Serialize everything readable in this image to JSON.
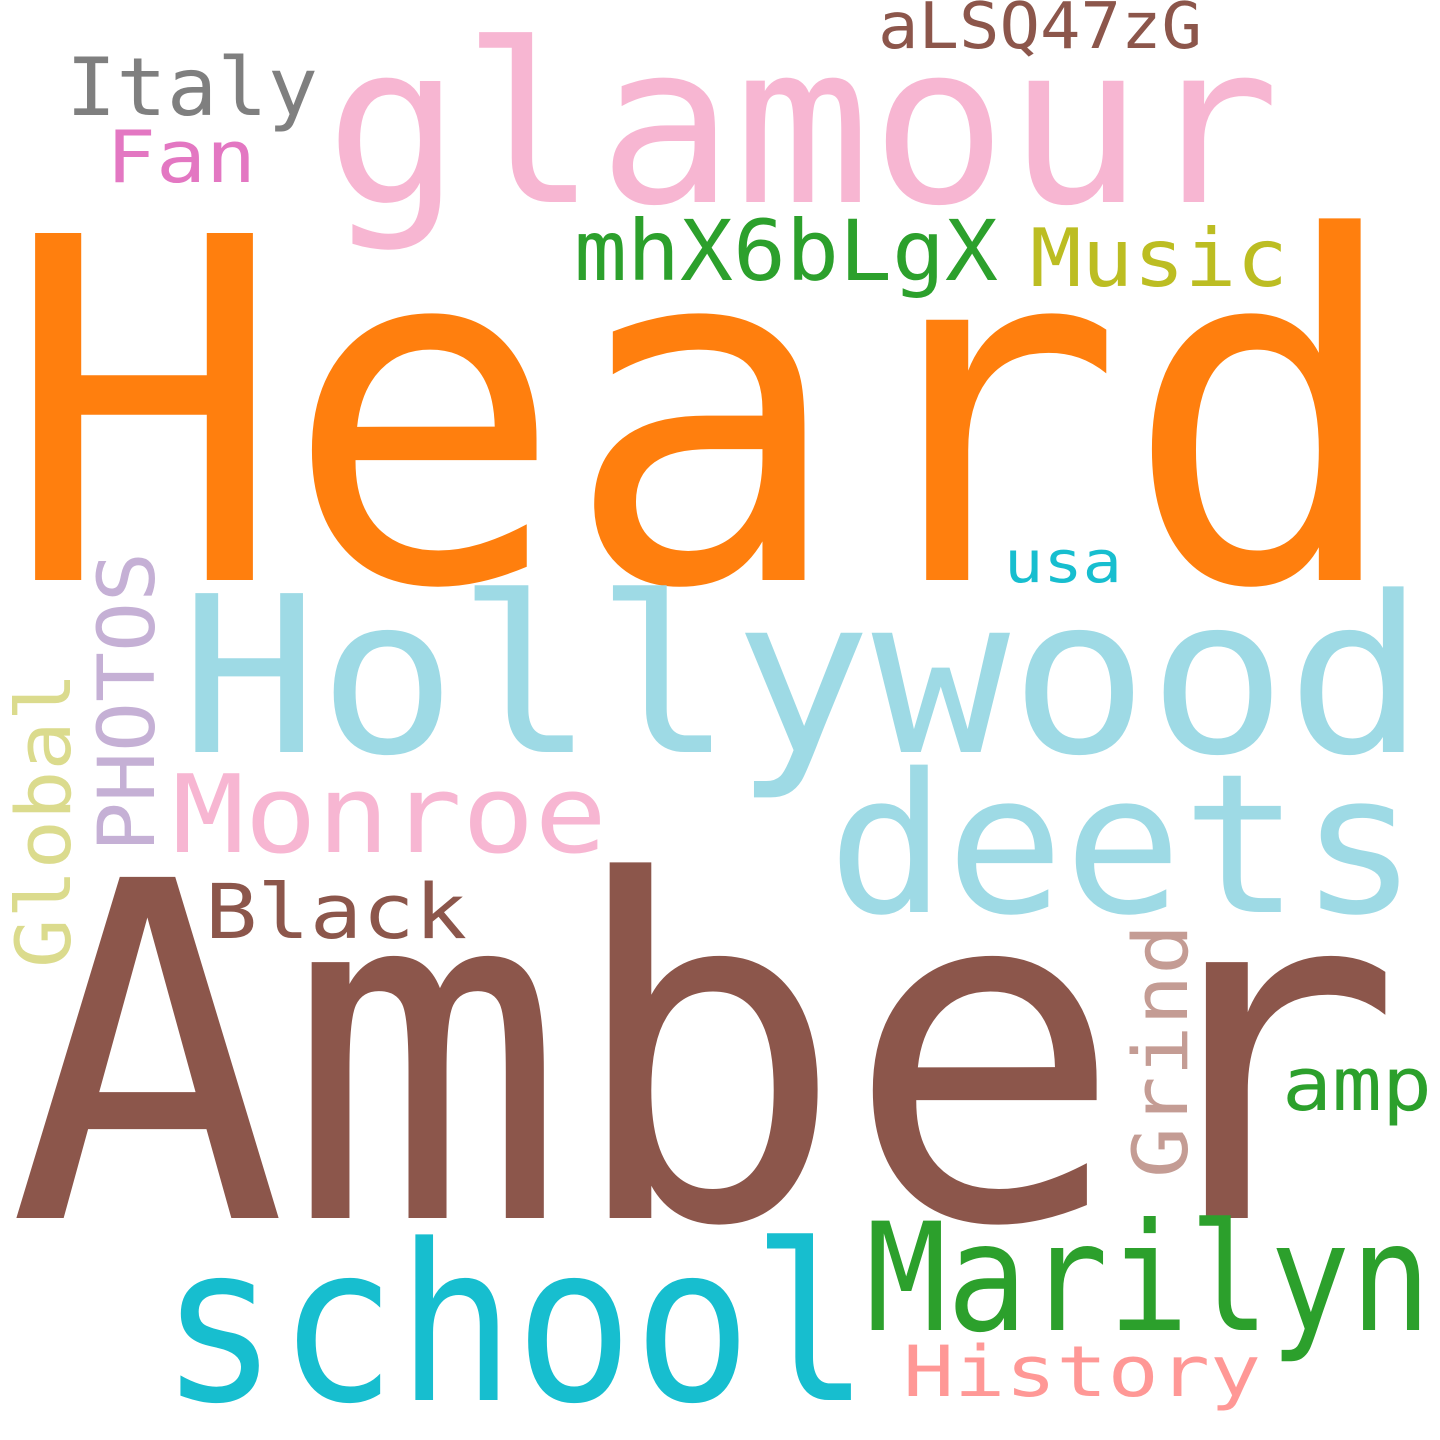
{
  "background": "#ffffff",
  "words": [
    {
      "text": "Heard",
      "color": "#ff7f0e"
    },
    {
      "text": "Amber",
      "color": "#8c564b"
    },
    {
      "text": "Hollywood",
      "color": "#9edae5"
    },
    {
      "text": "glamour",
      "color": "#f7b6d2"
    },
    {
      "text": "school",
      "color": "#17becf"
    },
    {
      "text": "deets",
      "color": "#9edae5"
    },
    {
      "text": "Marilyn",
      "color": "#2ca02c"
    },
    {
      "text": "Monroe",
      "color": "#f7b6d2"
    },
    {
      "text": "mhX6bLgX",
      "color": "#2ca02c"
    },
    {
      "text": "Music",
      "color": "#bcbd22"
    },
    {
      "text": "Italy",
      "color": "#7f7f7f"
    },
    {
      "text": "aLSQ47zG",
      "color": "#8c564b"
    },
    {
      "text": "Fan",
      "color": "#e377c2"
    },
    {
      "text": "PHOTOS",
      "color": "#c5b0d5"
    },
    {
      "text": "Global",
      "color": "#dbdb8d"
    },
    {
      "text": "Black",
      "color": "#8c564b"
    },
    {
      "text": "Grind",
      "color": "#c49c94"
    },
    {
      "text": "amp",
      "color": "#2ca02c"
    },
    {
      "text": "History",
      "color": "#ff9896"
    },
    {
      "text": "usa",
      "color": "#17becf"
    }
  ]
}
